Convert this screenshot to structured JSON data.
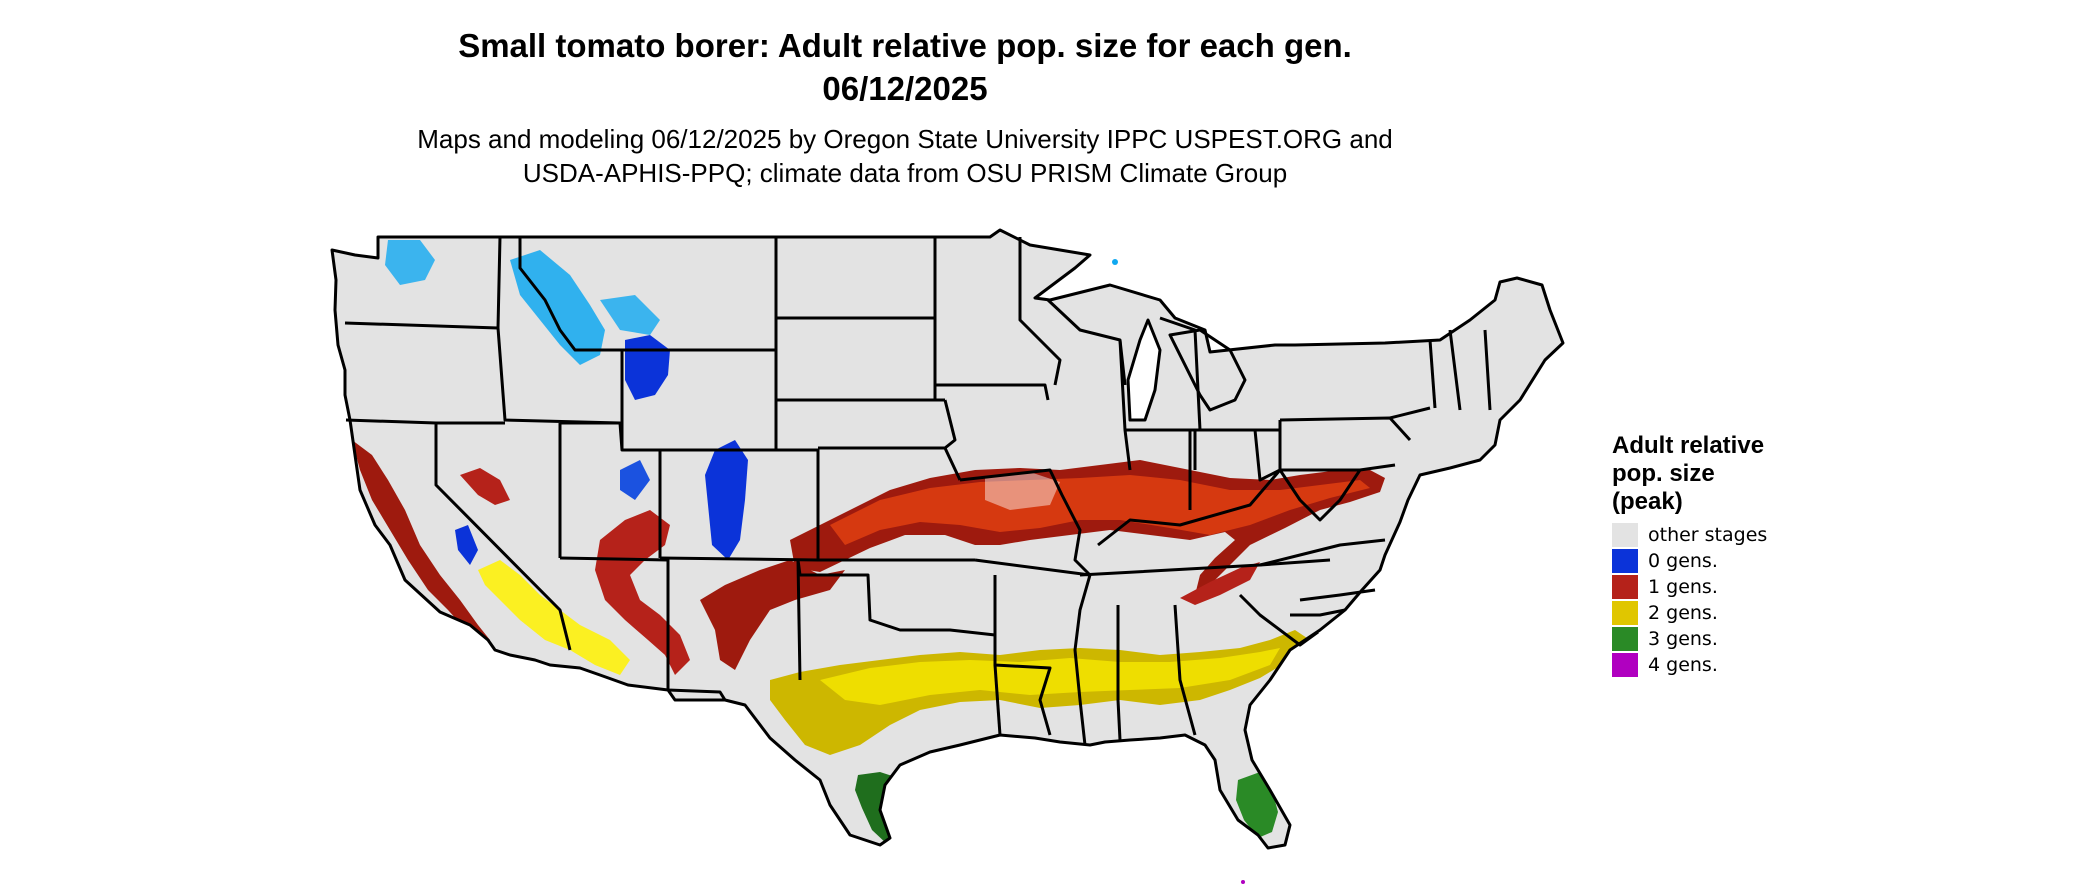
{
  "title": {
    "line1": "Small tomato borer: Adult relative pop. size for each gen.",
    "line2": "06/12/2025"
  },
  "subtitle": {
    "line1": "Maps and modeling 06/12/2025 by Oregon State University IPPC USPEST.ORG and",
    "line2": "USDA-APHIS-PPQ; climate data from OSU PRISM Climate Group"
  },
  "colors": {
    "other": "#e3e3e3",
    "gen0_dark": "#0b33d9",
    "gen0_light": "#10a8f0",
    "gen1_dark": "#9e1a0e",
    "gen1_light": "#e84412",
    "gen2_dark": "#cdb700",
    "gen2_light": "#fff200",
    "gen3_dark": "#1f6e1d",
    "gen3_light": "#3fb03a",
    "gen4": "#b000c0",
    "border": "#000000"
  },
  "legend": {
    "title_lines": [
      "Adult relative",
      "pop. size",
      "(peak)"
    ],
    "items": [
      {
        "label": "other stages",
        "color": "#e3e3e3"
      },
      {
        "label": "0 gens.",
        "color": "#0b33d9"
      },
      {
        "label": "1 gens.",
        "color": "#b5221a"
      },
      {
        "label": "2 gens.",
        "color": "#e0c600"
      },
      {
        "label": "3 gens.",
        "color": "#2a8a26"
      },
      {
        "label": "4 gens.",
        "color": "#b000c0"
      }
    ]
  }
}
